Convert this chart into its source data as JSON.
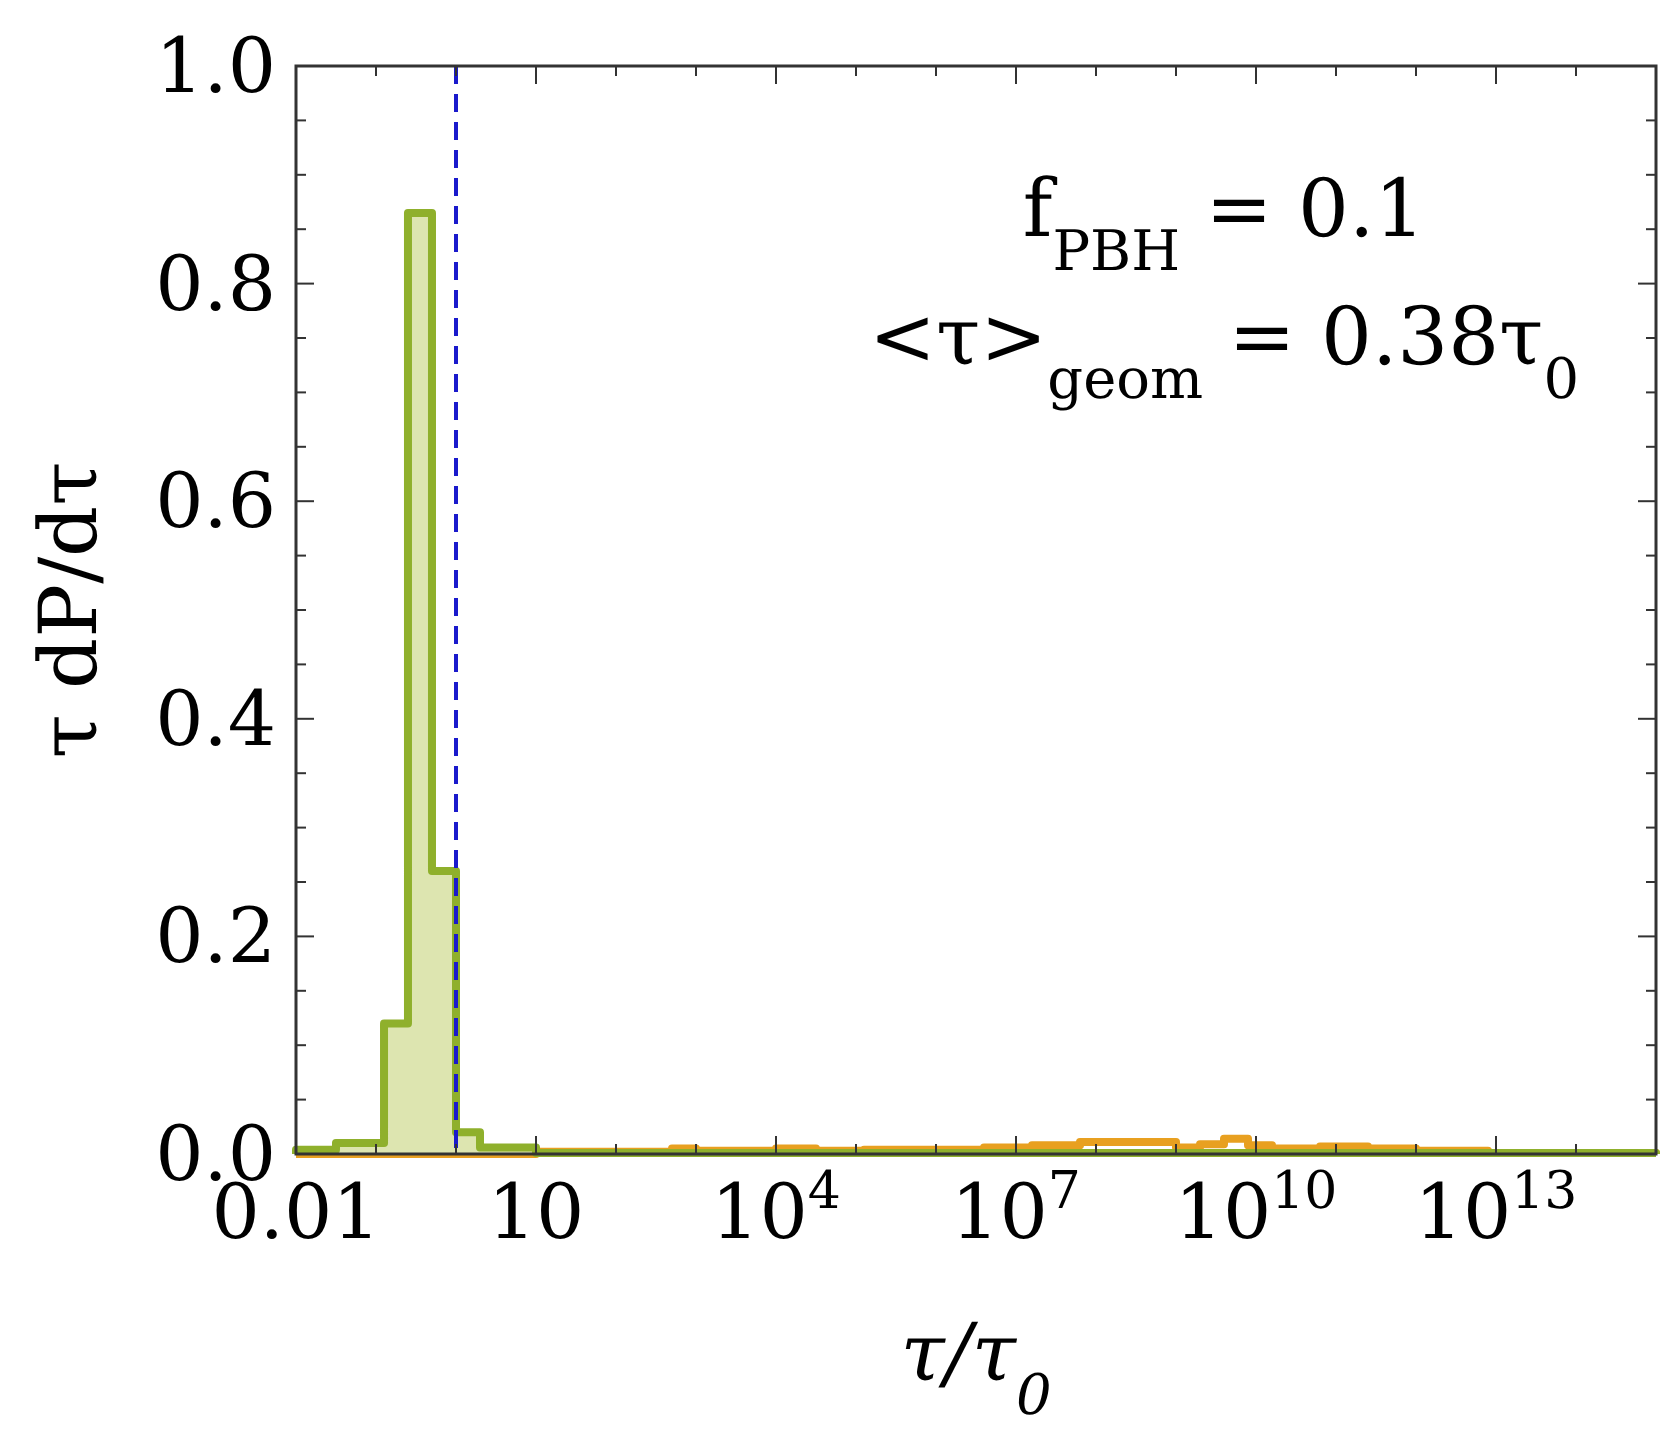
{
  "chart_data": {
    "type": "histogram",
    "xlabel": "τ/τ$_{0}$",
    "ylabel": "τ dP/dτ",
    "log": "x",
    "annotations": [
      "f$_{PBH}$ = 0.1",
      "<τ>$_{geom}$ = 0.38τ$_{0}$"
    ],
    "xlim": [
      0.01,
      1000000000000000.0
    ],
    "ylim": [
      0,
      1
    ],
    "xticks": [
      {
        "value": 0.01,
        "label": "0.01"
      },
      {
        "value": 0.1,
        "label": null
      },
      {
        "value": 1,
        "label": null
      },
      {
        "value": 10,
        "label": "10"
      },
      {
        "value": 100,
        "label": null
      },
      {
        "value": 1000,
        "label": null
      },
      {
        "value": 10000,
        "label": "10$^{4}$"
      },
      {
        "value": 100000,
        "label": null
      },
      {
        "value": 1000000,
        "label": null
      },
      {
        "value": 10000000,
        "label": "10$^{7}$"
      },
      {
        "value": 100000000,
        "label": null
      },
      {
        "value": 1000000000,
        "label": null
      },
      {
        "value": 10000000000,
        "label": "10$^{10}$"
      },
      {
        "value": 100000000000,
        "label": null
      },
      {
        "value": 1000000000000,
        "label": null
      },
      {
        "value": 10000000000000,
        "label": "10$^{13}$"
      },
      {
        "value": 100000000000000,
        "label": null
      }
    ],
    "yticks": [
      {
        "value": 0,
        "label": "0.0"
      },
      {
        "value": 0.05,
        "label": null
      },
      {
        "value": 0.1,
        "label": null
      },
      {
        "value": 0.15,
        "label": null
      },
      {
        "value": 0.2,
        "label": "0.2"
      },
      {
        "value": 0.25,
        "label": null
      },
      {
        "value": 0.3,
        "label": null
      },
      {
        "value": 0.35,
        "label": null
      },
      {
        "value": 0.4,
        "label": "0.4"
      },
      {
        "value": 0.45,
        "label": null
      },
      {
        "value": 0.5,
        "label": null
      },
      {
        "value": 0.55,
        "label": null
      },
      {
        "value": 0.6,
        "label": "0.6"
      },
      {
        "value": 0.65,
        "label": null
      },
      {
        "value": 0.7,
        "label": null
      },
      {
        "value": 0.75,
        "label": null
      },
      {
        "value": 0.8,
        "label": "0.8"
      },
      {
        "value": 0.85,
        "label": null
      },
      {
        "value": 0.9,
        "label": null
      },
      {
        "value": 0.95,
        "label": null
      },
      {
        "value": 1,
        "label": "1.0"
      }
    ],
    "ref_lines": [
      {
        "axis": "x",
        "value": 1,
        "color": "#1a1acc",
        "line_style": "dashed"
      }
    ],
    "bins": [
      0.01,
      0.0316,
      0.126,
      0.251,
      0.501,
      1,
      1.995,
      10,
      501.2,
      1000,
      10000,
      31623,
      125893,
      3981072,
      15848932,
      63095734,
      1000000000,
      1995262315,
      3981071706,
      7943282347,
      15848931925,
      63095734448,
      251188643151,
      1000000000000,
      7943282347243,
      1000000000000000
    ],
    "series": [
      {
        "color": "#e8a020",
        "values": [
          null,
          null,
          null,
          null,
          null,
          null,
          null,
          0.002,
          0.005,
          0.003,
          0.005,
          0.003,
          0.004,
          0.006,
          0.008,
          0.011,
          0.006,
          0.009,
          0.014,
          0.008,
          0.005,
          0.007,
          0.005,
          0.003,
          0.001
        ]
      },
      {
        "color": "#8fb02c",
        "values": [
          0.004,
          0.01,
          0.12,
          0.865,
          0.26,
          0.02,
          0.006,
          0.001,
          0.001,
          0.001,
          0.001,
          0.001,
          0.001,
          0.001,
          0.001,
          0.001,
          0.001,
          0.001,
          0.001,
          0.001,
          0.001,
          0.001,
          0.001,
          0.001,
          0.001
        ]
      }
    ]
  }
}
